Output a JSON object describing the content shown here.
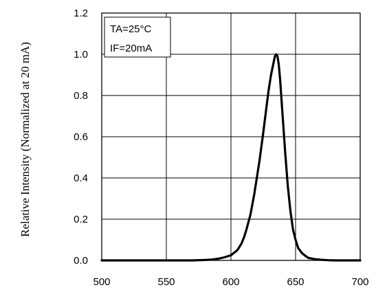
{
  "chart_data": {
    "type": "line",
    "title": "",
    "xlabel": "",
    "ylabel": "Relative Intensity (Normalized at 20 mA)",
    "xlim": [
      500,
      700
    ],
    "ylim": [
      0.0,
      1.2
    ],
    "grid": true,
    "x_ticks": [
      "500",
      "550",
      "600",
      "650",
      "700"
    ],
    "y_ticks": [
      "0.0",
      "0.2",
      "0.4",
      "0.6",
      "0.8",
      "1.0",
      "1.2"
    ],
    "annotations": [
      "TA=25°C",
      "IF=20mA"
    ],
    "series": [
      {
        "x": [
          500,
          560,
          570,
          580,
          585,
          590,
          595,
          600,
          605,
          608,
          610,
          612,
          615,
          618,
          620,
          622,
          625,
          627,
          629,
          631,
          633,
          634,
          635,
          636,
          637,
          638,
          640,
          642,
          644,
          646,
          648,
          650,
          652,
          655,
          658,
          660,
          665,
          670,
          675,
          680,
          690,
          700
        ],
        "y": [
          0.0,
          0.0,
          0.0,
          0.002,
          0.004,
          0.008,
          0.015,
          0.025,
          0.05,
          0.08,
          0.11,
          0.15,
          0.22,
          0.32,
          0.4,
          0.48,
          0.62,
          0.72,
          0.82,
          0.9,
          0.96,
          0.99,
          1.0,
          0.99,
          0.95,
          0.88,
          0.7,
          0.52,
          0.36,
          0.24,
          0.15,
          0.1,
          0.06,
          0.035,
          0.02,
          0.012,
          0.006,
          0.003,
          0.001,
          0.0,
          0.0,
          0.0
        ]
      }
    ]
  }
}
